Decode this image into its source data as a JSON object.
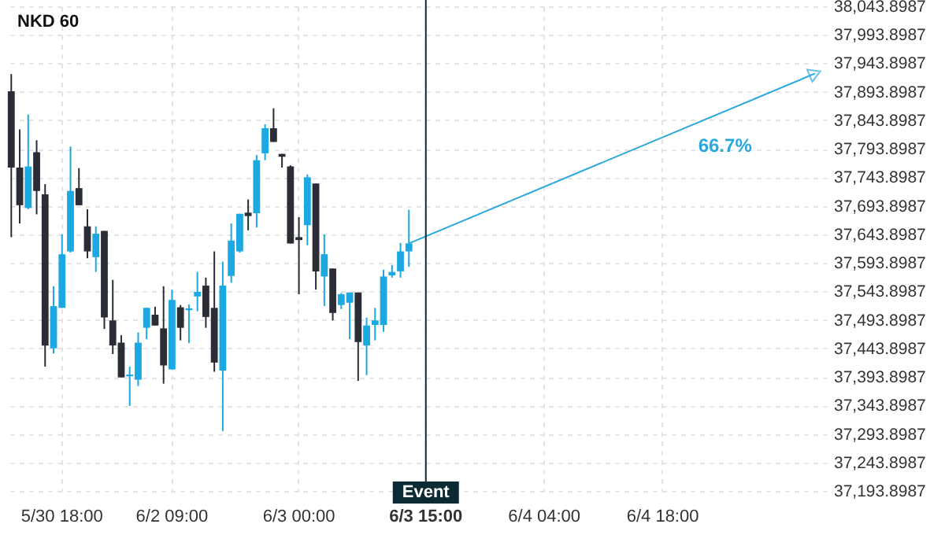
{
  "chart_data": {
    "type": "candlestick",
    "title": "NKD 60",
    "categories": [
      null,
      null,
      null,
      null,
      null,
      null,
      "5/30 18:00",
      null,
      null,
      null,
      null,
      null,
      null,
      null,
      null,
      null,
      null,
      null,
      null,
      "6/2 09:00",
      null,
      null,
      null,
      null,
      null,
      null,
      null,
      null,
      null,
      null,
      null,
      null,
      null,
      null,
      "6/3 00:00",
      null,
      null,
      null,
      null,
      null,
      null,
      null,
      null,
      null,
      null,
      null,
      null,
      null,
      null,
      "6/3 15:00",
      null,
      null,
      null,
      null,
      null,
      null,
      null,
      null,
      null,
      null,
      null,
      null,
      null,
      "6/4 04:00",
      null,
      null,
      null,
      null,
      null,
      null,
      null,
      null,
      null,
      null,
      null,
      null,
      null,
      "6/4 18:00",
      null,
      null,
      null,
      null,
      null,
      null,
      null,
      null,
      null,
      null,
      null,
      null,
      null,
      null,
      null,
      null,
      null,
      null,
      null
    ],
    "ohlc": [
      [
        37895,
        37925,
        37639,
        37761
      ],
      [
        37761,
        37828,
        37663,
        37695
      ],
      [
        37690,
        37854,
        37688,
        37763
      ],
      [
        37788,
        37809,
        37679,
        37720
      ],
      [
        37714,
        37732,
        37412,
        37449
      ],
      [
        37444,
        37553,
        37435,
        37518
      ],
      [
        37515,
        37644,
        37515,
        37609
      ],
      [
        37614,
        37798,
        37612,
        37720
      ],
      [
        37725,
        37760,
        37695,
        37695
      ],
      [
        37658,
        37688,
        37602,
        37614
      ],
      [
        37604,
        37658,
        37578,
        37645
      ],
      [
        37650,
        37650,
        37478,
        37498
      ],
      [
        37493,
        37564,
        37434,
        37449
      ],
      [
        37454,
        37467,
        37393,
        37393
      ],
      [
        37395,
        37412,
        37343,
        37398
      ],
      [
        37389,
        37472,
        37378,
        37454
      ],
      [
        37480,
        37515,
        37460,
        37515
      ],
      [
        37503,
        37517,
        37484,
        37484
      ],
      [
        37479,
        37553,
        37382,
        37414
      ],
      [
        37407,
        37547,
        37407,
        37529
      ],
      [
        37516,
        37520,
        37458,
        37480
      ],
      [
        37511,
        37521,
        37453,
        37514
      ],
      [
        37535,
        37578,
        37509,
        37543
      ],
      [
        37554,
        37568,
        37480,
        37499
      ],
      [
        37515,
        37614,
        37403,
        37419
      ],
      [
        37405,
        37596,
        37299,
        37554
      ],
      [
        37571,
        37663,
        37559,
        37633
      ],
      [
        37614,
        37680,
        37612,
        37680
      ],
      [
        37682,
        37705,
        37651,
        37676
      ],
      [
        37681,
        37783,
        37656,
        37774
      ],
      [
        37786,
        37837,
        37774,
        37830
      ],
      [
        37830,
        37865,
        37806,
        37806
      ],
      [
        37785,
        37785,
        37761,
        37780
      ],
      [
        37763,
        37765,
        37628,
        37628
      ],
      [
        37639,
        37674,
        37539,
        37634
      ],
      [
        37660,
        37749,
        37625,
        37744
      ],
      [
        37733,
        37733,
        37547,
        37579
      ],
      [
        37570,
        37644,
        37518,
        37609
      ],
      [
        37584,
        37584,
        37493,
        37506
      ],
      [
        37520,
        37541,
        37513,
        37539
      ],
      [
        37524,
        37542,
        37460,
        37542
      ],
      [
        37542,
        37542,
        37387,
        37455
      ],
      [
        37449,
        37498,
        37397,
        37484
      ],
      [
        37485,
        37515,
        37458,
        37493
      ],
      [
        37485,
        37582,
        37473,
        37570
      ],
      [
        37572,
        37590,
        37568,
        37578
      ],
      [
        37579,
        37629,
        37568,
        37614
      ],
      [
        37614,
        37687,
        37587,
        37628
      ],
      null,
      null,
      null,
      null,
      null,
      null,
      null,
      null,
      null,
      null,
      null,
      null,
      null,
      null,
      null,
      null,
      null,
      null,
      null,
      null,
      null,
      null,
      null,
      null,
      null,
      null,
      null,
      null,
      null,
      null,
      null,
      null,
      null,
      null,
      null,
      null,
      null,
      null,
      null,
      null,
      null,
      null,
      null,
      null,
      null,
      null,
      null,
      null,
      null
    ],
    "colors": [
      "#2b2d36",
      "#2b2d36",
      "#1ca8e0",
      "#2b2d36",
      "#2b2d36",
      "#1ca8e0",
      "#1ca8e0",
      "#1ca8e0",
      "#2b2d36",
      "#2b2d36",
      "#1ca8e0",
      "#2b2d36",
      "#2b2d36",
      "#2b2d36",
      "#1ca8e0",
      "#1ca8e0",
      "#1ca8e0",
      "#2b2d36",
      "#2b2d36",
      "#1ca8e0",
      "#2b2d36",
      "#1ca8e0",
      "#1ca8e0",
      "#2b2d36",
      "#2b2d36",
      "#1ca8e0",
      "#1ca8e0",
      "#1ca8e0",
      "#2b2d36",
      "#1ca8e0",
      "#1ca8e0",
      "#2b2d36",
      "#2b2d36",
      "#2b2d36",
      "#2b2d36",
      "#1ca8e0",
      "#2b2d36",
      "#1ca8e0",
      "#2b2d36",
      "#1ca8e0",
      "#1ca8e0",
      "#2b2d36",
      "#1ca8e0",
      "#1ca8e0",
      "#1ca8e0",
      "#1ca8e0",
      "#1ca8e0",
      "#1ca8e0",
      null,
      null,
      null,
      null,
      null,
      null,
      null,
      null,
      null,
      null,
      null,
      null,
      null,
      null,
      null,
      null,
      null,
      null,
      null,
      null,
      null,
      null,
      null,
      null,
      null,
      null,
      null,
      null,
      null,
      null,
      null,
      null,
      null,
      null,
      null,
      null,
      null,
      null,
      null,
      null,
      null,
      null,
      null,
      null,
      null,
      null,
      null,
      null,
      null
    ],
    "series": [
      {
        "type": "line",
        "color": "#29a8df",
        "marker": "triangle",
        "values": [
          null,
          null,
          null,
          null,
          null,
          null,
          null,
          null,
          null,
          null,
          null,
          null,
          null,
          null,
          null,
          null,
          null,
          null,
          null,
          null,
          null,
          null,
          null,
          null,
          null,
          null,
          null,
          null,
          null,
          null,
          null,
          null,
          null,
          null,
          null,
          null,
          null,
          null,
          null,
          null,
          null,
          null,
          null,
          null,
          null,
          null,
          null,
          37628,
          null,
          null,
          null,
          null,
          null,
          null,
          null,
          null,
          null,
          null,
          null,
          null,
          null,
          null,
          null,
          null,
          null,
          null,
          null,
          null,
          null,
          null,
          null,
          null,
          null,
          null,
          null,
          null,
          null,
          null,
          null,
          null,
          null,
          null,
          null,
          null,
          null,
          null,
          null,
          null,
          null,
          null,
          null,
          null,
          null,
          null,
          null,
          37926,
          null
        ]
      }
    ],
    "annotations": [
      "66.7%"
    ],
    "ref_lines": [
      {
        "axis": "x",
        "value": "6/3 15:00",
        "label": "Event",
        "color": "#0b2a33"
      }
    ],
    "ylim": [
      37193.8987,
      38043.8987
    ],
    "yticks": [
      {
        "value": 37193.8987,
        "label": "37,193.8987"
      },
      {
        "value": 37243.8987,
        "label": "37,243.8987"
      },
      {
        "value": 37293.8987,
        "label": "37,293.8987"
      },
      {
        "value": 37343.8987,
        "label": "37,343.8987"
      },
      {
        "value": 37393.8987,
        "label": "37,393.8987"
      },
      {
        "value": 37443.8987,
        "label": "37,443.8987"
      },
      {
        "value": 37493.8987,
        "label": "37,493.8987"
      },
      {
        "value": 37543.8987,
        "label": "37,543.8987"
      },
      {
        "value": 37593.8987,
        "label": "37,593.8987"
      },
      {
        "value": 37643.8987,
        "label": "37,643.8987"
      },
      {
        "value": 37693.8987,
        "label": "37,693.8987"
      },
      {
        "value": 37743.8987,
        "label": "37,743.8987"
      },
      {
        "value": 37793.8987,
        "label": "37,793.8987"
      },
      {
        "value": 37843.8987,
        "label": "37,843.8987"
      },
      {
        "value": 37893.8987,
        "label": "37,893.8987"
      },
      {
        "value": 37943.8987,
        "label": "37,943.8987"
      },
      {
        "value": 37993.8987,
        "label": "37,993.8987"
      },
      {
        "value": 38043.8987,
        "label": "38,043.8987"
      }
    ],
    "grid": true
  }
}
